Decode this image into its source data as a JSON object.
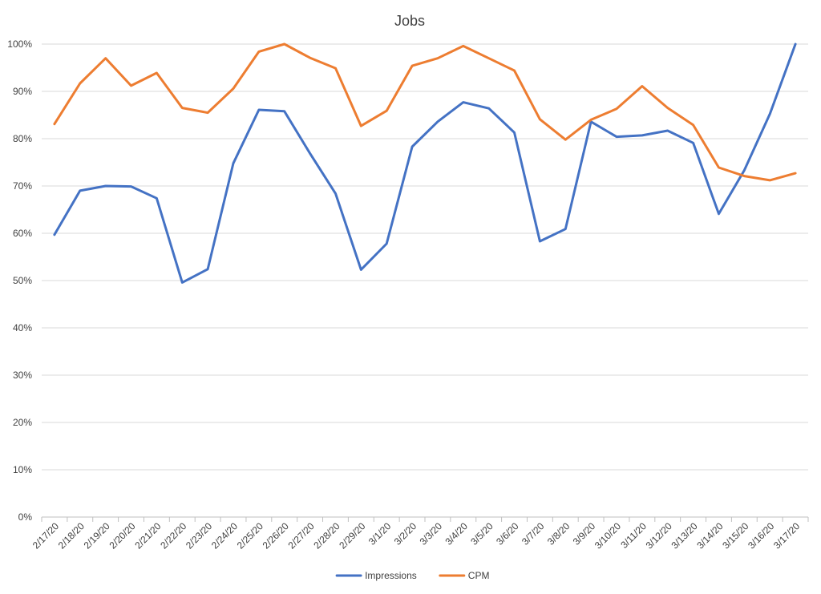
{
  "chart_data": {
    "type": "line",
    "title": "Jobs",
    "xlabel": "",
    "ylabel": "",
    "ylim": [
      0,
      100
    ],
    "y_ticks": [
      "0%",
      "10%",
      "20%",
      "30%",
      "40%",
      "50%",
      "60%",
      "70%",
      "80%",
      "90%",
      "100%"
    ],
    "grid": true,
    "legend_position": "bottom",
    "categories": [
      "2/17/20",
      "2/18/20",
      "2/19/20",
      "2/20/20",
      "2/21/20",
      "2/22/20",
      "2/23/20",
      "2/24/20",
      "2/25/20",
      "2/26/20",
      "2/27/20",
      "2/28/20",
      "2/29/20",
      "3/1/20",
      "3/2/20",
      "3/3/20",
      "3/4/20",
      "3/5/20",
      "3/6/20",
      "3/7/20",
      "3/8/20",
      "3/9/20",
      "3/10/20",
      "3/11/20",
      "3/12/20",
      "3/13/20",
      "3/14/20",
      "3/15/20",
      "3/16/20",
      "3/17/20"
    ],
    "series": [
      {
        "name": "Impressions",
        "color": "#4472c4",
        "values": [
          59.7,
          69.0,
          70.0,
          69.9,
          67.4,
          49.6,
          52.4,
          74.8,
          86.1,
          85.8,
          76.9,
          68.4,
          52.3,
          57.8,
          78.3,
          83.6,
          87.7,
          86.4,
          81.3,
          58.3,
          60.9,
          83.6,
          80.4,
          80.7,
          81.7,
          79.1,
          64.1,
          73.3,
          85.2,
          100.0
        ]
      },
      {
        "name": "CPM",
        "color": "#ed7d31",
        "values": [
          83.1,
          91.7,
          97.0,
          91.2,
          93.9,
          86.5,
          85.5,
          90.6,
          98.4,
          100.0,
          97.1,
          94.9,
          82.7,
          85.9,
          95.4,
          97.0,
          99.6,
          97.0,
          94.4,
          84.1,
          79.8,
          84.0,
          86.3,
          91.1,
          86.5,
          82.9,
          73.9,
          72.1,
          71.2,
          72.7
        ]
      }
    ]
  }
}
